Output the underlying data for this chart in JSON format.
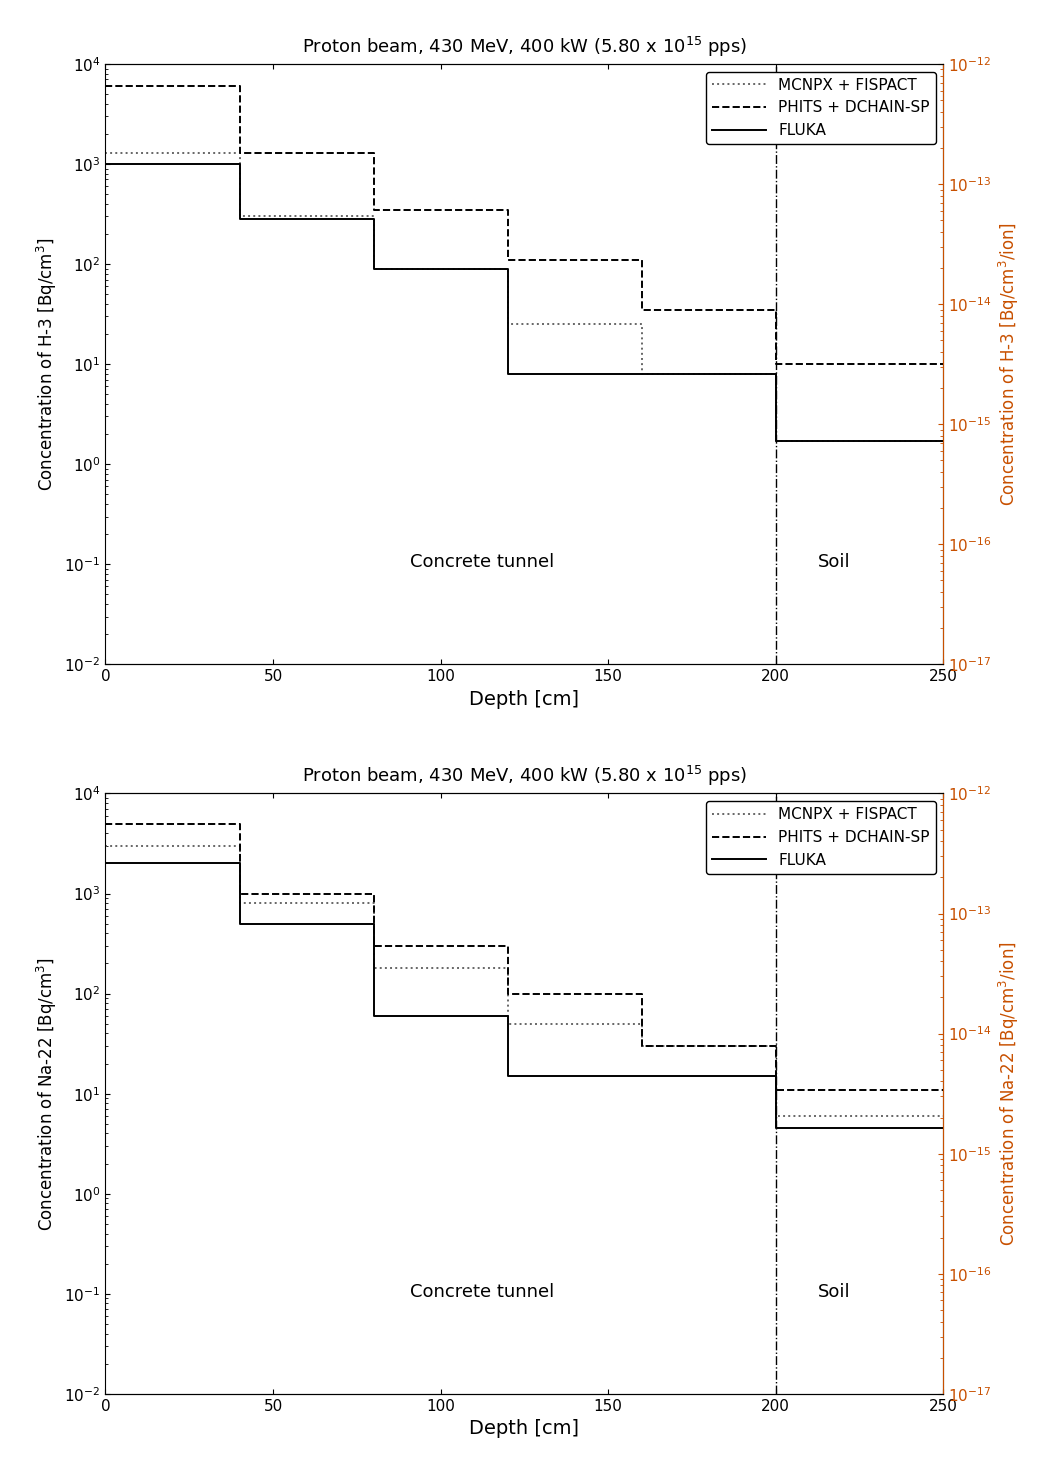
{
  "title": "Proton beam, 430 MeV, 400 kW (5.80 x 10$^{15}$ pps)",
  "xlabel": "Depth [cm]",
  "yleft_h3": "Concentration of H-3 [Bq/cm$^3$]",
  "yright_h3": "Concentration of H-3 [Bq/cm$^3$/ion]",
  "yleft_na22": "Concentration of Na-22 [Bq/cm$^3$]",
  "yright_na22": "Concentration of Na-22 [Bq/cm$^3$/ion]",
  "xlim": [
    0,
    250
  ],
  "ylim_left": [
    0.01,
    10000
  ],
  "ylim_right": [
    1e-17,
    1e-12
  ],
  "x_boundaries": [
    0,
    40,
    80,
    120,
    160,
    200,
    250
  ],
  "vline_x": 200,
  "label_mcnpx": "MCNPX + FISPACT",
  "label_phits": "PHITS + DCHAIN-SP",
  "label_fluka": "FLUKA",
  "concrete_label": "Concrete tunnel",
  "soil_label": "Soil",
  "h3_fluka": [
    1000,
    280,
    90,
    8.0,
    8.0,
    1.7
  ],
  "h3_mcnpx": [
    1300,
    300,
    90,
    25,
    8.0,
    1.7
  ],
  "h3_phits": [
    6000,
    1300,
    350,
    110,
    35,
    10
  ],
  "na22_fluka": [
    2000,
    500,
    60,
    15,
    15,
    4.5
  ],
  "na22_mcnpx": [
    3000,
    800,
    180,
    50,
    30,
    6.0
  ],
  "na22_phits": [
    5000,
    1000,
    300,
    100,
    30,
    11
  ],
  "color_fluka": "#000000",
  "color_mcnpx": "#666666",
  "color_phits": "#000000",
  "color_right_axis": "#c85000",
  "lw_fluka": 1.4,
  "lw_mcnpx": 1.4,
  "lw_phits": 1.4,
  "fontsize_title": 13,
  "fontsize_label": 12,
  "fontsize_tick": 11,
  "fontsize_legend": 11,
  "fontsize_annot": 13
}
